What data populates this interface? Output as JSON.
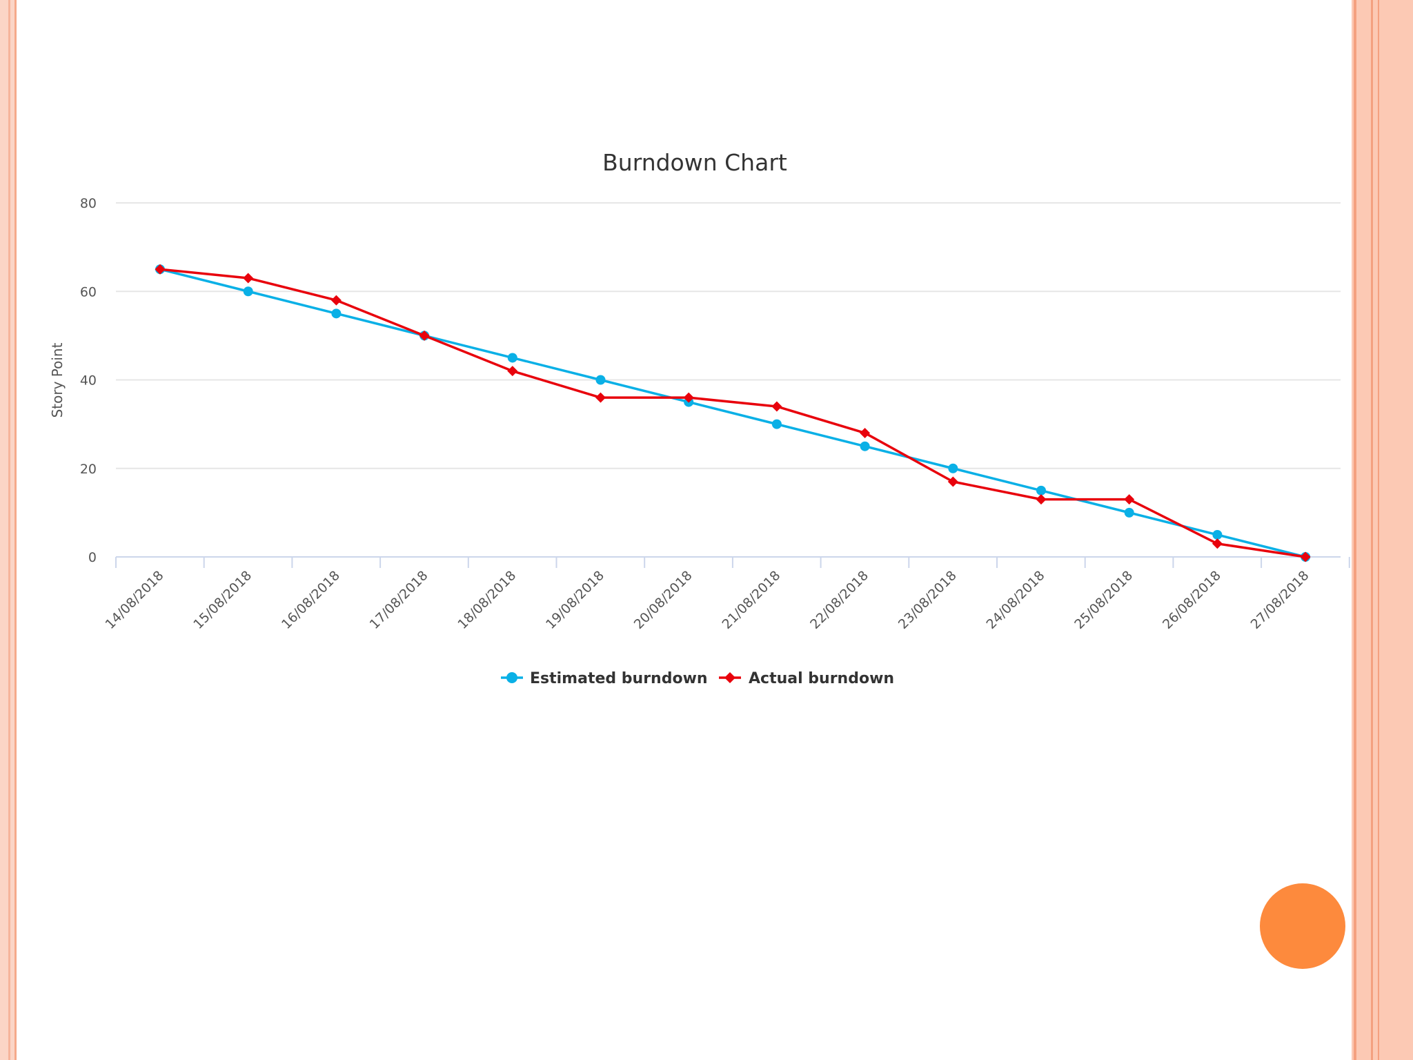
{
  "colors": {
    "estimated": "#0ab0e6",
    "actual": "#e8020c",
    "grid": "#e6e6e6",
    "axis": "#ccd6eb",
    "accent_circle": "#fd8a3d"
  },
  "chart_data": {
    "type": "line",
    "title": "Burndown Chart",
    "xlabel": "",
    "ylabel": "Story Point",
    "ylim": [
      0,
      80
    ],
    "yticks": [
      "0",
      "20",
      "40",
      "60",
      "80"
    ],
    "grid": true,
    "legend_position": "bottom-center",
    "categories": [
      "14/08/2018",
      "15/08/2018",
      "16/08/2018",
      "17/08/2018",
      "18/08/2018",
      "19/08/2018",
      "20/08/2018",
      "21/08/2018",
      "22/08/2018",
      "23/08/2018",
      "24/08/2018",
      "25/08/2018",
      "26/08/2018",
      "27/08/2018"
    ],
    "series": [
      {
        "name": "Estimated burndown",
        "marker": "circle",
        "values": [
          65,
          60,
          55,
          50,
          45,
          40,
          35,
          30,
          25,
          20,
          15,
          10,
          5,
          0
        ]
      },
      {
        "name": "Actual burndown",
        "marker": "diamond",
        "values": [
          65,
          63,
          58,
          50,
          42,
          36,
          36,
          34,
          28,
          17,
          13,
          13,
          3,
          0
        ]
      }
    ]
  }
}
